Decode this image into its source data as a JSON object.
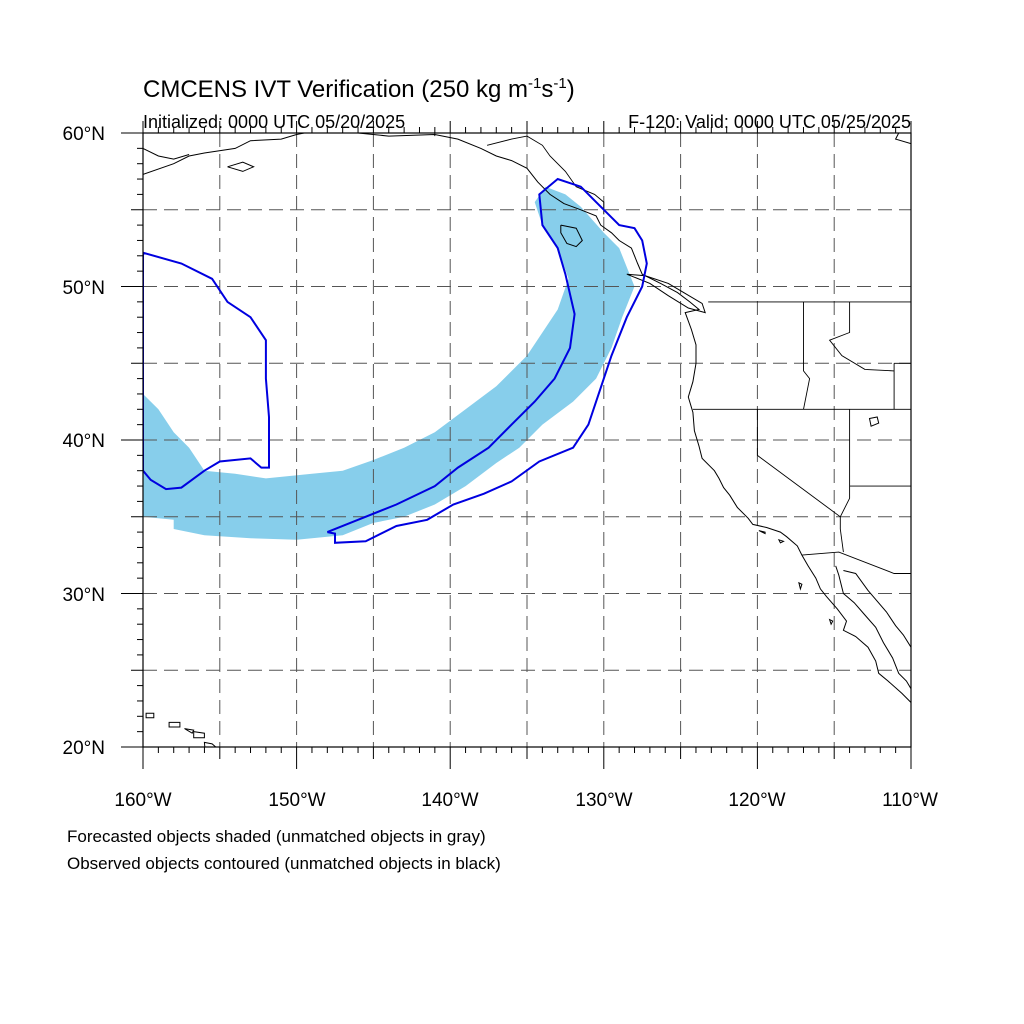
{
  "title": "CMCENS IVT Verification (250 kg m",
  "title_exp1": "-1",
  "title_mid": "s",
  "title_exp2": "-1",
  "title_end": ")",
  "initialized": "Initialized: 0000 UTC 05/20/2025",
  "valid": "F-120: Valid: 0000 UTC 05/25/2025",
  "footnotes": [
    "Forecasted objects shaded (unmatched objects in gray)",
    "Observed objects contoured (unmatched objects in black)"
  ],
  "lon_labels": [
    "160°W",
    "150°W",
    "140°W",
    "130°W",
    "120°W",
    "110°W"
  ],
  "lat_labels": [
    "60°N",
    "50°N",
    "40°N",
    "30°N",
    "20°N"
  ],
  "colors": {
    "forecast_fill": "#87ceeb",
    "observed_contour": "#0000e0",
    "coast": "#000000",
    "grid": "#555555"
  },
  "map_extent": {
    "lon_min": -160,
    "lon_max": -110,
    "lat_min": 20,
    "lat_max": 60
  },
  "forecast_object_lonlat": [
    [
      -160,
      43
    ],
    [
      -159,
      42
    ],
    [
      -158,
      40.5
    ],
    [
      -157,
      39.5
    ],
    [
      -156,
      38
    ],
    [
      -154,
      37.8
    ],
    [
      -152,
      37.5
    ],
    [
      -149,
      37.8
    ],
    [
      -147,
      38
    ],
    [
      -145,
      38.7
    ],
    [
      -143,
      39.5
    ],
    [
      -141,
      40.5
    ],
    [
      -139,
      42
    ],
    [
      -137,
      43.5
    ],
    [
      -135,
      45.5
    ],
    [
      -134,
      47
    ],
    [
      -133,
      48.5
    ],
    [
      -132.3,
      50.5
    ],
    [
      -133,
      52.5
    ],
    [
      -134,
      54
    ],
    [
      -134.5,
      55.5
    ],
    [
      -133.8,
      56.5
    ],
    [
      -132.5,
      56
    ],
    [
      -131.5,
      55.2
    ],
    [
      -130,
      53.5
    ],
    [
      -129,
      52.5
    ],
    [
      -128,
      50
    ],
    [
      -128.8,
      48
    ],
    [
      -129.5,
      46
    ],
    [
      -130.5,
      44
    ],
    [
      -132,
      42.5
    ],
    [
      -134,
      41
    ],
    [
      -135.5,
      39.5
    ],
    [
      -137,
      38.5
    ],
    [
      -139,
      37
    ],
    [
      -141,
      35.8
    ],
    [
      -143,
      35
    ],
    [
      -145,
      34.6
    ],
    [
      -147,
      33.8
    ],
    [
      -150,
      33.5
    ],
    [
      -153,
      33.6
    ],
    [
      -156,
      33.8
    ],
    [
      -158,
      34.2
    ],
    [
      -158,
      34.8
    ],
    [
      -160,
      35
    ]
  ],
  "observed_object_a_lonlat": [
    [
      -160,
      52.2
    ],
    [
      -157.5,
      51.5
    ],
    [
      -155.5,
      50.5
    ],
    [
      -154.5,
      49
    ],
    [
      -153,
      48
    ],
    [
      -152,
      46.5
    ],
    [
      -152,
      44
    ],
    [
      -151.8,
      41.5
    ],
    [
      -151.8,
      38.2
    ],
    [
      -152.3,
      38.2
    ],
    [
      -153,
      38.8
    ],
    [
      -155,
      38.6
    ],
    [
      -156,
      38
    ],
    [
      -157.5,
      36.9
    ],
    [
      -158.5,
      36.8
    ],
    [
      -159.5,
      37.4
    ],
    [
      -160,
      38
    ]
  ],
  "observed_object_b_lonlat": [
    [
      -148,
      34
    ],
    [
      -146,
      34.8
    ],
    [
      -143.5,
      35.8
    ],
    [
      -141,
      37
    ],
    [
      -139.5,
      38.2
    ],
    [
      -137.5,
      39.5
    ],
    [
      -136,
      41
    ],
    [
      -134.5,
      42.5
    ],
    [
      -133.2,
      44
    ],
    [
      -132.2,
      46
    ],
    [
      -131.9,
      48.2
    ],
    [
      -132.5,
      50.8
    ],
    [
      -133,
      52.5
    ],
    [
      -134,
      54
    ],
    [
      -134.2,
      56
    ],
    [
      -133,
      57
    ],
    [
      -131.5,
      56.5
    ],
    [
      -130.5,
      55.5
    ],
    [
      -129.8,
      54.8
    ],
    [
      -129,
      54
    ],
    [
      -128,
      53.8
    ],
    [
      -127.5,
      53
    ],
    [
      -127.2,
      51.5
    ],
    [
      -127.5,
      50
    ],
    [
      -128.5,
      48
    ],
    [
      -129.5,
      45.5
    ],
    [
      -130,
      44
    ],
    [
      -131,
      41
    ],
    [
      -132,
      39.5
    ],
    [
      -134.2,
      38.6
    ],
    [
      -136,
      37.3
    ],
    [
      -137.8,
      36.5
    ],
    [
      -139.8,
      35.8
    ],
    [
      -141.5,
      34.8
    ],
    [
      -143.5,
      34.4
    ],
    [
      -145.5,
      33.4
    ],
    [
      -147.5,
      33.3
    ],
    [
      -147.5,
      33.9
    ]
  ],
  "coastlines_lonlat": [
    [
      [
        -160,
        57.3
      ],
      [
        -158,
        58
      ],
      [
        -157,
        58.5
      ],
      [
        -156,
        58.7
      ],
      [
        -154,
        59
      ],
      [
        -153,
        59.5
      ],
      [
        -151,
        59.6
      ],
      [
        -150,
        59.9
      ],
      [
        -149.5,
        60
      ]
    ],
    [
      [
        -160,
        59
      ],
      [
        -159,
        58.5
      ],
      [
        -158,
        58.3
      ],
      [
        -157,
        58.6
      ]
    ],
    [
      [
        -154.5,
        57.8
      ],
      [
        -153.5,
        57.5
      ],
      [
        -152.8,
        57.8
      ],
      [
        -153.5,
        58.1
      ],
      [
        -154.5,
        57.8
      ]
    ],
    [
      [
        -146,
        60
      ],
      [
        -144,
        59.8
      ],
      [
        -141,
        59.9
      ],
      [
        -139.5,
        59.6
      ],
      [
        -138,
        59
      ],
      [
        -137,
        58.5
      ],
      [
        -136,
        58.2
      ],
      [
        -135,
        57.7
      ],
      [
        -134.3,
        56.8
      ],
      [
        -133.5,
        56
      ],
      [
        -132.6,
        55.4
      ],
      [
        -131.5,
        55
      ],
      [
        -130.5,
        54.6
      ],
      [
        -130.2,
        54
      ],
      [
        -129.5,
        53.5
      ],
      [
        -129,
        53
      ],
      [
        -128.2,
        52.5
      ],
      [
        -127.8,
        51.5
      ],
      [
        -127.5,
        50.8
      ],
      [
        -126.3,
        50.2
      ],
      [
        -125.2,
        49.6
      ],
      [
        -124.4,
        49
      ],
      [
        -123.8,
        48.5
      ],
      [
        -124.7,
        48.3
      ],
      [
        -124.3,
        47.2
      ],
      [
        -124,
        46.2
      ],
      [
        -124,
        45
      ],
      [
        -124.2,
        43.8
      ],
      [
        -124.5,
        42.8
      ],
      [
        -124.2,
        41.8
      ],
      [
        -124.1,
        40.6
      ],
      [
        -123.8,
        39.6
      ],
      [
        -123.6,
        38.8
      ],
      [
        -122.8,
        38
      ],
      [
        -122.5,
        37.5
      ],
      [
        -122.2,
        36.9
      ],
      [
        -121.8,
        36.4
      ],
      [
        -121.3,
        35.6
      ],
      [
        -120.6,
        34.9
      ],
      [
        -120.3,
        34.5
      ],
      [
        -119.4,
        34.3
      ],
      [
        -118.5,
        34
      ],
      [
        -118.1,
        33.7
      ],
      [
        -117.4,
        33.1
      ],
      [
        -117.1,
        32.5
      ],
      [
        -116.7,
        31.8
      ],
      [
        -116.2,
        31
      ],
      [
        -115.9,
        30.3
      ],
      [
        -115.5,
        29.8
      ],
      [
        -114.8,
        29
      ],
      [
        -114.2,
        28.2
      ],
      [
        -114.4,
        27.6
      ],
      [
        -113.6,
        27.2
      ],
      [
        -112.8,
        26.5
      ],
      [
        -112.3,
        25.6
      ],
      [
        -112.1,
        24.8
      ],
      [
        -111.5,
        24.3
      ],
      [
        -110.6,
        23.5
      ],
      [
        -110,
        22.9
      ]
    ],
    [
      [
        -128.5,
        50.8
      ],
      [
        -127,
        50.2
      ],
      [
        -125.8,
        49.4
      ],
      [
        -124.5,
        48.6
      ],
      [
        -123.4,
        48.3
      ],
      [
        -123.6,
        48.9
      ],
      [
        -124.8,
        49.6
      ],
      [
        -125.8,
        50.2
      ],
      [
        -127.3,
        50.7
      ],
      [
        -128.5,
        50.8
      ]
    ],
    [
      [
        -132.8,
        54
      ],
      [
        -131.8,
        53.8
      ],
      [
        -131.4,
        53
      ],
      [
        -131.8,
        52.6
      ],
      [
        -132.4,
        52.8
      ],
      [
        -132.8,
        53.5
      ],
      [
        -132.8,
        54
      ]
    ],
    [
      [
        -110,
        23.8
      ],
      [
        -110.3,
        24.3
      ],
      [
        -110.8,
        24.8
      ],
      [
        -111.2,
        25.8
      ],
      [
        -111.8,
        26.8
      ],
      [
        -112.3,
        27.8
      ],
      [
        -113,
        28.6
      ],
      [
        -113.7,
        29.4
      ],
      [
        -114.4,
        30
      ],
      [
        -114.7,
        31.2
      ],
      [
        -114.9,
        31.8
      ]
    ],
    [
      [
        -110,
        26.5
      ],
      [
        -110.5,
        27.3
      ],
      [
        -111,
        27.9
      ],
      [
        -111.6,
        28.8
      ],
      [
        -112.2,
        29.5
      ],
      [
        -112.8,
        30.2
      ],
      [
        -113.6,
        31.3
      ],
      [
        -114.4,
        31.5
      ]
    ],
    [
      [
        -110,
        59.3
      ],
      [
        -111,
        59.6
      ],
      [
        -110.8,
        60
      ]
    ]
  ],
  "islands_lonlat": [
    [
      [
        -159.8,
        22.2
      ],
      [
        -159.3,
        22.2
      ],
      [
        -159.3,
        21.9
      ],
      [
        -159.8,
        21.9
      ],
      [
        -159.8,
        22.2
      ]
    ],
    [
      [
        -158.3,
        21.6
      ],
      [
        -157.6,
        21.6
      ],
      [
        -157.6,
        21.3
      ],
      [
        -158.3,
        21.3
      ],
      [
        -158.3,
        21.6
      ]
    ],
    [
      [
        -157.3,
        21.2
      ],
      [
        -156.7,
        21.1
      ],
      [
        -156.8,
        20.9
      ],
      [
        -157.3,
        21.2
      ]
    ],
    [
      [
        -156.7,
        21
      ],
      [
        -156,
        20.9
      ],
      [
        -156,
        20.6
      ],
      [
        -156.7,
        20.6
      ],
      [
        -156.7,
        21
      ]
    ],
    [
      [
        -156,
        20.3
      ],
      [
        -155.5,
        20.2
      ],
      [
        -154.8,
        19.6
      ],
      [
        -155.2,
        19.1
      ],
      [
        -155.9,
        19.2
      ],
      [
        -156,
        20.3
      ]
    ],
    [
      [
        -119.9,
        34.1
      ],
      [
        -119.5,
        34
      ],
      [
        -119.5,
        33.9
      ],
      [
        -119.9,
        34.1
      ]
    ],
    [
      [
        -118.6,
        33.5
      ],
      [
        -118.3,
        33.4
      ],
      [
        -118.5,
        33.3
      ],
      [
        -118.6,
        33.5
      ]
    ],
    [
      [
        -117.3,
        30.7
      ],
      [
        -117.1,
        30.6
      ],
      [
        -117.2,
        30.3
      ],
      [
        -117.3,
        30.7
      ]
    ],
    [
      [
        -115.3,
        28.3
      ],
      [
        -115.1,
        28.2
      ],
      [
        -115.2,
        28
      ],
      [
        -115.3,
        28.3
      ]
    ]
  ],
  "borders_lonlat": [
    [
      [
        -123.2,
        49
      ],
      [
        -120,
        49
      ],
      [
        -117,
        49
      ],
      [
        -114,
        49
      ],
      [
        -110,
        49
      ]
    ],
    [
      [
        -141,
        60
      ],
      [
        -141,
        59.8
      ]
    ],
    [
      [
        -137.6,
        59.2
      ],
      [
        -136,
        59.6
      ],
      [
        -135,
        59.8
      ],
      [
        -134,
        59.2
      ],
      [
        -133.5,
        58.5
      ],
      [
        -132.5,
        57.5
      ],
      [
        -131.8,
        56.5
      ],
      [
        -130.6,
        56
      ],
      [
        -130,
        55.5
      ],
      [
        -130,
        54.7
      ]
    ],
    [
      [
        -124.2,
        42
      ],
      [
        -120,
        42
      ],
      [
        -117,
        42
      ],
      [
        -114,
        42
      ],
      [
        -111,
        42
      ],
      [
        -110,
        42
      ]
    ],
    [
      [
        -120,
        42
      ],
      [
        -120,
        39
      ],
      [
        -114.6,
        35
      ],
      [
        -114.6,
        34.2
      ],
      [
        -114.4,
        32.7
      ]
    ],
    [
      [
        -117.1,
        32.5
      ],
      [
        -114.7,
        32.7
      ],
      [
        -111.1,
        31.3
      ],
      [
        -110,
        31.3
      ]
    ],
    [
      [
        -117,
        49
      ],
      [
        -117,
        46.5
      ],
      [
        -117,
        44.5
      ],
      [
        -116.6,
        44
      ],
      [
        -117,
        42
      ]
    ],
    [
      [
        -114,
        49
      ],
      [
        -114,
        47
      ],
      [
        -115.3,
        46.5
      ],
      [
        -114.5,
        45.5
      ],
      [
        -113,
        44.6
      ],
      [
        -111.1,
        44.5
      ]
    ],
    [
      [
        -111.1,
        45
      ],
      [
        -111.1,
        42
      ]
    ],
    [
      [
        -114,
        42
      ],
      [
        -114,
        37
      ],
      [
        -114,
        36.2
      ],
      [
        -114.6,
        35
      ]
    ],
    [
      [
        -114,
        37
      ],
      [
        -110,
        37
      ]
    ],
    [
      [
        -111.1,
        45
      ],
      [
        -110,
        45
      ]
    ]
  ],
  "lakes_lonlat": [
    [
      [
        -112.7,
        41.4
      ],
      [
        -112.2,
        41.5
      ],
      [
        -112.1,
        41.1
      ],
      [
        -112.6,
        40.9
      ],
      [
        -112.7,
        41.4
      ]
    ]
  ]
}
